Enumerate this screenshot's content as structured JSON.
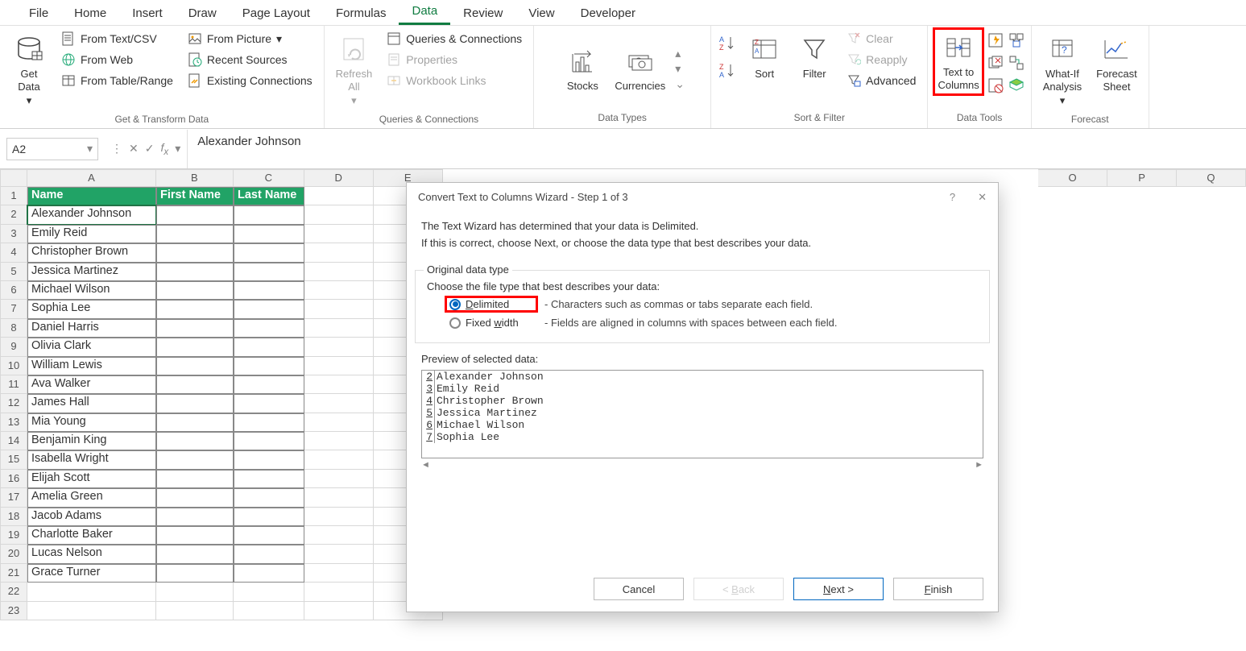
{
  "ribbonTabs": [
    "File",
    "Home",
    "Insert",
    "Draw",
    "Page Layout",
    "Formulas",
    "Data",
    "Review",
    "View",
    "Developer"
  ],
  "activeTab": "Data",
  "ribbon": {
    "getData": "Get\nData",
    "fromTextCsv": "From Text/CSV",
    "fromWeb": "From Web",
    "fromTableRange": "From Table/Range",
    "fromPicture": "From Picture",
    "recentSources": "Recent Sources",
    "existingConnections": "Existing Connections",
    "groupGetTransform": "Get & Transform Data",
    "refreshAll": "Refresh\nAll",
    "queriesConnections": "Queries & Connections",
    "properties": "Properties",
    "workbookLinks": "Workbook Links",
    "groupQueries": "Queries & Connections",
    "stocks": "Stocks",
    "currencies": "Currencies",
    "groupDataTypes": "Data Types",
    "sort": "Sort",
    "filter": "Filter",
    "clear": "Clear",
    "reapply": "Reapply",
    "advanced": "Advanced",
    "groupSortFilter": "Sort & Filter",
    "textToColumns": "Text to\nColumns",
    "groupDataTools": "Data Tools",
    "whatIf": "What-If\nAnalysis",
    "forecastSheet": "Forecast\nSheet",
    "groupForecast": "Forecast"
  },
  "nameBox": "A2",
  "formula": "Alexander Johnson",
  "columns": [
    "A",
    "B",
    "C",
    "D",
    "E",
    "O",
    "P",
    "Q"
  ],
  "colWidths": {
    "A": 160,
    "B": 96,
    "C": 88,
    "D": 86,
    "E": 86,
    "O": 86,
    "P": 86,
    "Q": 86
  },
  "headerRow": {
    "A": "Name",
    "B": "First Name",
    "C": "Last Name"
  },
  "rows": [
    "Alexander Johnson",
    "Emily Reid",
    "Christopher Brown",
    "Jessica Martinez",
    "Michael Wilson",
    "Sophia Lee",
    "Daniel Harris",
    "Olivia Clark",
    "William Lewis",
    "Ava Walker",
    "James Hall",
    "Mia Young",
    "Benjamin King",
    "Isabella Wright",
    "Elijah Scott",
    "Amelia Green",
    "Jacob Adams",
    "Charlotte Baker",
    "Lucas Nelson",
    "Grace Turner"
  ],
  "dialog": {
    "title": "Convert Text to Columns Wizard - Step 1 of 3",
    "line1": "The Text Wizard has determined that your data is Delimited.",
    "line2": "If this is correct, choose Next, or choose the data type that best describes your data.",
    "fieldsetLabel": "Original data type",
    "chooseLabel": "Choose the file type that best describes your data:",
    "delimited": "Delimited",
    "delimitedDesc": "- Characters such as commas or tabs separate each field.",
    "fixedWidth": "Fixed width",
    "fixedWidthDesc": "- Fields are aligned in columns with spaces between each field.",
    "previewLabel": "Preview of selected data:",
    "previewRows": [
      {
        "n": "2",
        "t": "Alexander Johnson"
      },
      {
        "n": "3",
        "t": "Emily Reid"
      },
      {
        "n": "4",
        "t": "Christopher Brown"
      },
      {
        "n": "5",
        "t": "Jessica Martinez"
      },
      {
        "n": "6",
        "t": "Michael Wilson"
      },
      {
        "n": "7",
        "t": "Sophia Lee"
      }
    ],
    "cancel": "Cancel",
    "back": "< Back",
    "next": "Next >",
    "finish": "Finish"
  },
  "colors": {
    "green": "#21a366",
    "accent": "#107c41",
    "red": "#ff0000",
    "blue": "#0067c0"
  }
}
